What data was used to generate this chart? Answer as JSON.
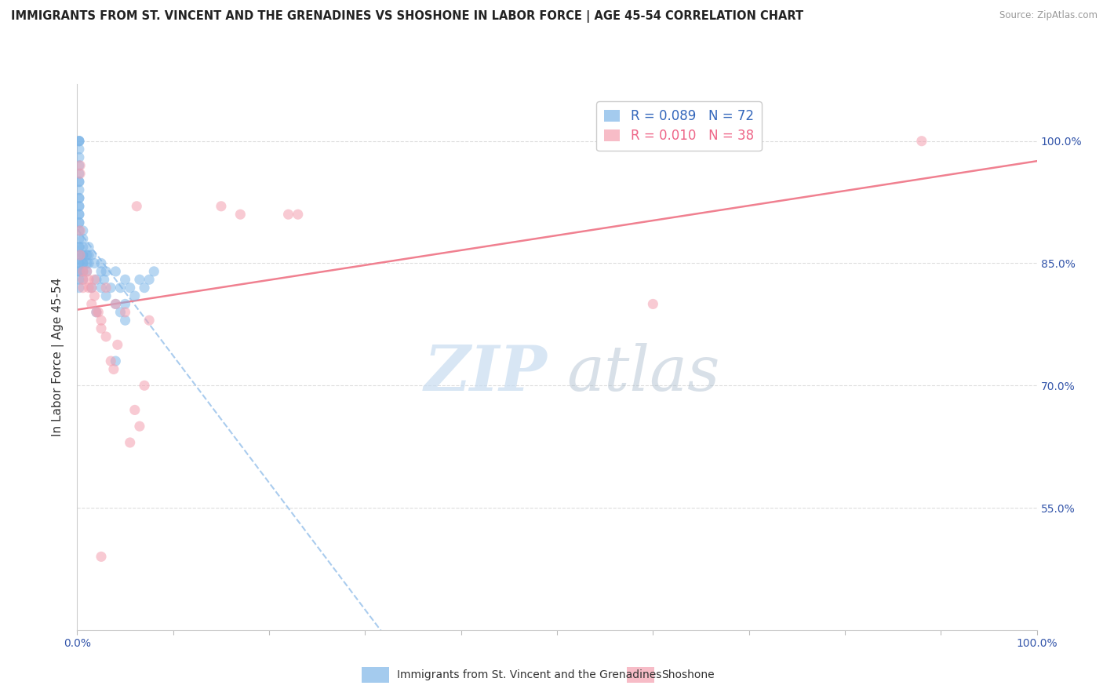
{
  "title": "IMMIGRANTS FROM ST. VINCENT AND THE GRENADINES VS SHOSHONE IN LABOR FORCE | AGE 45-54 CORRELATION CHART",
  "source": "Source: ZipAtlas.com",
  "ylabel": "In Labor Force | Age 45-54",
  "xlim": [
    0.0,
    1.0
  ],
  "ylim": [
    0.4,
    1.07
  ],
  "x_ticks": [
    0.0,
    0.1,
    0.2,
    0.3,
    0.4,
    0.5,
    0.6,
    0.7,
    0.8,
    0.9,
    1.0
  ],
  "x_tick_labels": [
    "0.0%",
    "",
    "",
    "",
    "",
    "",
    "",
    "",
    "",
    "",
    "100.0%"
  ],
  "y_tick_positions": [
    0.55,
    0.7,
    0.85,
    1.0
  ],
  "y_tick_labels": [
    "55.0%",
    "70.0%",
    "85.0%",
    "100.0%"
  ],
  "blue_R": 0.089,
  "blue_N": 72,
  "pink_R": 0.01,
  "pink_N": 38,
  "blue_color": "#7EB6E8",
  "pink_color": "#F4A0B0",
  "blue_trend_color": "#AACCEE",
  "pink_trend_color": "#F08090",
  "legend_blue_label": "Immigrants from St. Vincent and the Grenadines",
  "legend_pink_label": "Shoshone",
  "watermark_zip": "ZIP",
  "watermark_atlas": "atlas",
  "blue_scatter_x": [
    0.002,
    0.002,
    0.002,
    0.002,
    0.002,
    0.002,
    0.002,
    0.002,
    0.002,
    0.002,
    0.002,
    0.002,
    0.002,
    0.002,
    0.002,
    0.002,
    0.002,
    0.002,
    0.002,
    0.002,
    0.002,
    0.002,
    0.002,
    0.002,
    0.002,
    0.002,
    0.002,
    0.002,
    0.002,
    0.002,
    0.006,
    0.006,
    0.006,
    0.006,
    0.006,
    0.006,
    0.006,
    0.006,
    0.006,
    0.006,
    0.01,
    0.01,
    0.01,
    0.012,
    0.012,
    0.012,
    0.015,
    0.015,
    0.018,
    0.02,
    0.02,
    0.025,
    0.025,
    0.025,
    0.028,
    0.03,
    0.03,
    0.035,
    0.04,
    0.04,
    0.04,
    0.045,
    0.045,
    0.05,
    0.05,
    0.05,
    0.055,
    0.06,
    0.065,
    0.07,
    0.075,
    0.08
  ],
  "blue_scatter_y": [
    1.0,
    1.0,
    1.0,
    0.99,
    0.98,
    0.97,
    0.96,
    0.95,
    0.95,
    0.94,
    0.93,
    0.93,
    0.92,
    0.92,
    0.91,
    0.91,
    0.9,
    0.9,
    0.89,
    0.88,
    0.87,
    0.87,
    0.86,
    0.86,
    0.85,
    0.85,
    0.84,
    0.84,
    0.83,
    0.82,
    0.89,
    0.88,
    0.87,
    0.86,
    0.86,
    0.85,
    0.85,
    0.84,
    0.84,
    0.83,
    0.86,
    0.85,
    0.84,
    0.87,
    0.86,
    0.85,
    0.86,
    0.82,
    0.85,
    0.83,
    0.79,
    0.84,
    0.85,
    0.82,
    0.83,
    0.81,
    0.84,
    0.82,
    0.84,
    0.8,
    0.73,
    0.82,
    0.79,
    0.83,
    0.8,
    0.78,
    0.82,
    0.81,
    0.83,
    0.82,
    0.83,
    0.84
  ],
  "pink_scatter_x": [
    0.003,
    0.003,
    0.003,
    0.003,
    0.006,
    0.006,
    0.006,
    0.01,
    0.012,
    0.012,
    0.015,
    0.015,
    0.018,
    0.018,
    0.02,
    0.022,
    0.025,
    0.025,
    0.03,
    0.03,
    0.035,
    0.038,
    0.04,
    0.042,
    0.05,
    0.055,
    0.06,
    0.062,
    0.065,
    0.07,
    0.075,
    0.15,
    0.17,
    0.22,
    0.23,
    0.6,
    0.88,
    0.025
  ],
  "pink_scatter_y": [
    0.97,
    0.96,
    0.89,
    0.86,
    0.84,
    0.83,
    0.82,
    0.84,
    0.83,
    0.82,
    0.82,
    0.8,
    0.83,
    0.81,
    0.79,
    0.79,
    0.78,
    0.77,
    0.82,
    0.76,
    0.73,
    0.72,
    0.8,
    0.75,
    0.79,
    0.63,
    0.67,
    0.92,
    0.65,
    0.7,
    0.78,
    0.92,
    0.91,
    0.91,
    0.91,
    0.8,
    1.0,
    0.49
  ]
}
